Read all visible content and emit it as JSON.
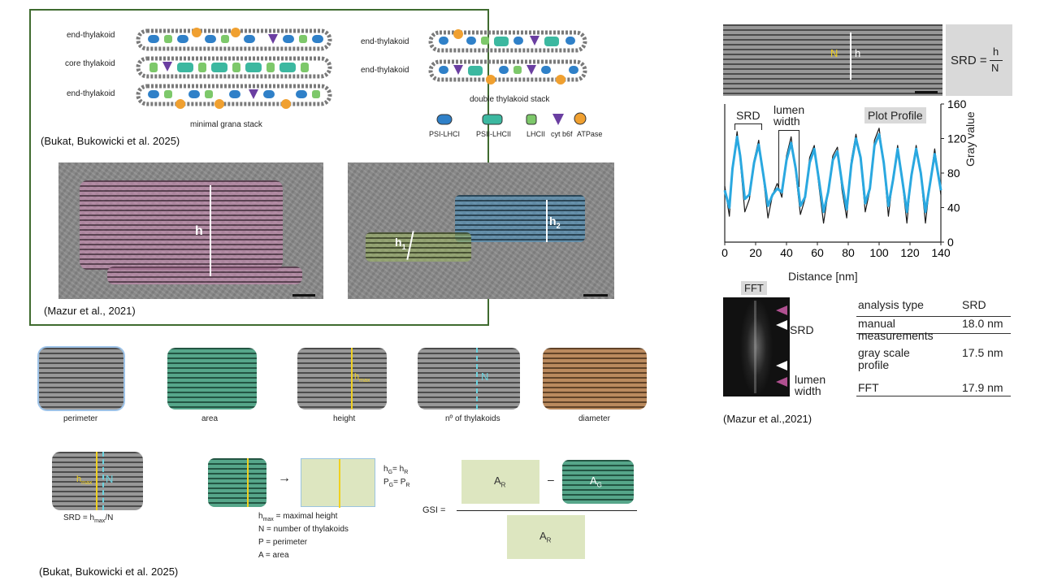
{
  "top_left": {
    "stack_labels": {
      "end_top": "end-thylakoid",
      "core": "core thylakoid",
      "end_bottom": "end-thylakoid",
      "right_top": "end-thylakoid",
      "right_bottom": "end-thylakoid"
    },
    "minimal_caption": "minimal grana stack",
    "double_caption": "double thylakoid stack",
    "legend": [
      "PSI-LHCI",
      "PSII-LHCII",
      "LHCII",
      "cyt b6f",
      "ATPase"
    ],
    "citation": "(Bukat, Bukowicki et al. 2025)",
    "colors": {
      "psi": "#2f80c8",
      "psii": "#3cb8a0",
      "lhcii": "#7dc86a",
      "cyt": "#6a3ea1",
      "atpase": "#f0a030"
    }
  },
  "micrographs": {
    "h": "h",
    "h1": "h",
    "h1_sub": "1",
    "h2": "h",
    "h2_sub": "2",
    "citation": "(Mazur et al., 2021)"
  },
  "params": {
    "labels": [
      "perimeter",
      "area",
      "height",
      "nº of thylakoids",
      "diameter"
    ],
    "hmax": "h",
    "hmax_sub": "max",
    "n": "N"
  },
  "srd_formula": {
    "image_hmax": "h",
    "image_hmax_sub": "max",
    "image_n": "N",
    "caption_pre": "SRD = h",
    "caption_sub": "max",
    "caption_post": "/N"
  },
  "gsi": {
    "arrow": "→",
    "hg": "h",
    "hg_sub": "G",
    "hg_eq": "= h",
    "hg_eq_sub": "R",
    "pg": "P",
    "pg_sub": "G",
    "pg_eq": "= P",
    "pg_eq_sub": "R",
    "label": "GSI =",
    "ar": "A",
    "ar_sub": "R",
    "ag": "A",
    "ag_sub": "G",
    "minus": "–",
    "ar2": "A",
    "ar2_sub": "R",
    "defs": [
      {
        "pre": "h",
        "sub": "max",
        "post": " = maximal height"
      },
      {
        "pre": "N",
        "sub": "",
        "post": " = number of thylakoids"
      },
      {
        "pre": "P",
        "sub": "",
        "post": " = perimeter"
      },
      {
        "pre": "A",
        "sub": "",
        "post": " = area"
      }
    ]
  },
  "bottom_citation": "(Bukat, Bukowicki et al. 2025)",
  "right": {
    "srd_lhs": "SRD =",
    "srd_num": "h",
    "srd_den": "N",
    "tem_n": "N",
    "tem_h": "h",
    "plot_profile": "Plot Profile",
    "srd_label": "SRD",
    "lumen_label_1": "lumen",
    "lumen_label_2": "width",
    "fft_label": "FFT",
    "fft_srd": "SRD",
    "fft_lumen_1": "lumen",
    "fft_lumen_2": "width",
    "table": {
      "headers": [
        "analysis type",
        "SRD"
      ],
      "rows": [
        {
          "type_1": "manual",
          "type_2": "measurements",
          "value": "18.0 nm"
        },
        {
          "type_1": "gray scale",
          "type_2": "profile",
          "value": "17.5 nm"
        },
        {
          "type_1": "FFT",
          "type_2": "",
          "value": "17.9 nm"
        }
      ]
    },
    "citation": "(Mazur et al.,2021)"
  },
  "chart_data": {
    "type": "line",
    "title": "",
    "xlabel": "Distance [nm]",
    "ylabel": "Gray value",
    "xlim": [
      0,
      140
    ],
    "ylim": [
      0,
      160
    ],
    "xticks": [
      0,
      20,
      40,
      60,
      80,
      100,
      120,
      140
    ],
    "yticks": [
      0,
      40,
      80,
      120,
      160
    ],
    "grid": false,
    "series": [
      {
        "color": "#1a1a1a",
        "x": [
          0,
          3,
          5,
          8,
          10,
          13,
          16,
          19,
          22,
          25,
          28,
          31,
          34,
          37,
          40,
          43,
          46,
          49,
          52,
          55,
          58,
          61,
          64,
          67,
          70,
          73,
          76,
          79,
          82,
          85,
          88,
          91,
          94,
          97,
          100,
          103,
          106,
          109,
          112,
          115,
          118,
          121,
          124,
          127,
          130,
          133,
          136,
          140
        ],
        "values": [
          65,
          30,
          85,
          128,
          95,
          35,
          50,
          95,
          118,
          75,
          28,
          55,
          68,
          52,
          100,
          122,
          80,
          32,
          50,
          98,
          112,
          65,
          22,
          58,
          100,
          110,
          60,
          28,
          95,
          125,
          95,
          35,
          60,
          118,
          132,
          90,
          30,
          75,
          112,
          70,
          22,
          80,
          112,
          78,
          22,
          70,
          108,
          55
        ]
      },
      {
        "color": "#2aa8e0",
        "x": [
          0,
          3,
          5,
          8,
          10,
          13,
          16,
          19,
          22,
          25,
          28,
          31,
          34,
          37,
          40,
          43,
          46,
          49,
          52,
          55,
          58,
          61,
          64,
          67,
          70,
          73,
          76,
          79,
          82,
          85,
          88,
          91,
          94,
          97,
          100,
          103,
          106,
          109,
          112,
          115,
          118,
          121,
          124,
          127,
          130,
          133,
          136,
          140
        ],
        "values": [
          60,
          40,
          85,
          122,
          100,
          50,
          55,
          92,
          113,
          78,
          42,
          55,
          62,
          58,
          95,
          115,
          85,
          42,
          52,
          92,
          108,
          72,
          35,
          58,
          95,
          105,
          68,
          38,
          90,
          120,
          98,
          45,
          62,
          112,
          125,
          92,
          42,
          72,
          108,
          72,
          35,
          78,
          108,
          80,
          35,
          68,
          102,
          60
        ]
      }
    ]
  }
}
